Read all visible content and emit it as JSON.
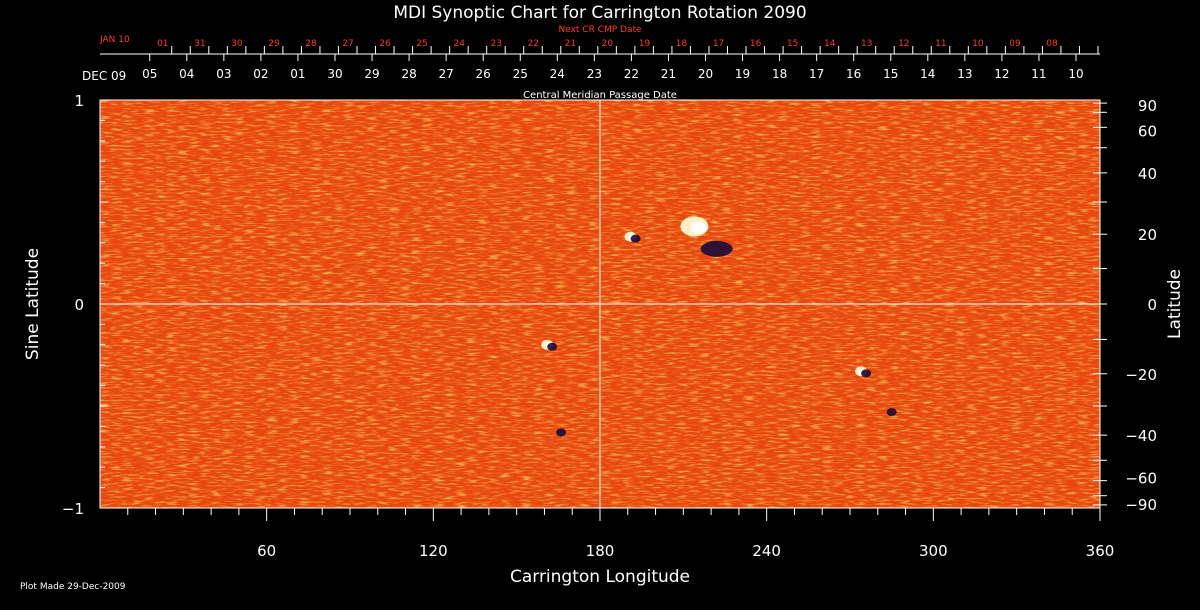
{
  "chart_data": {
    "type": "heatmap",
    "title": "MDI Synoptic Chart for Carrington Rotation 2090",
    "xlabel": "Carrington Longitude",
    "ylabel_left": "Sine Latitude",
    "ylabel_right": "Latitude",
    "xlim": [
      0,
      360
    ],
    "ylim": [
      -1,
      1
    ],
    "x_ticks": [
      60,
      120,
      180,
      240,
      300,
      360
    ],
    "left_ticks": [
      {
        "v": 1,
        "label": "1"
      },
      {
        "v": 0,
        "label": "0"
      },
      {
        "v": -1,
        "label": "−1"
      }
    ],
    "right_ticks": [
      {
        "deg": 90,
        "label": "90"
      },
      {
        "deg": 60,
        "label": "60"
      },
      {
        "deg": 40,
        "label": "40"
      },
      {
        "deg": 20,
        "label": "20"
      },
      {
        "deg": 0,
        "label": "0"
      },
      {
        "deg": -20,
        "label": "−20"
      },
      {
        "deg": -40,
        "label": "−40"
      },
      {
        "deg": -60,
        "label": "−60"
      },
      {
        "deg": -90,
        "label": "−90"
      }
    ],
    "cmp_axis_label": "Central Meridian Passage Date",
    "cmp_start_label": "DEC 09",
    "cmp_dates": [
      "05",
      "04",
      "03",
      "02",
      "01",
      "30",
      "29",
      "28",
      "27",
      "26",
      "25",
      "24",
      "23",
      "22",
      "21",
      "20",
      "19",
      "18",
      "17",
      "16",
      "15",
      "14",
      "13",
      "12",
      "11",
      "10"
    ],
    "next_cr_label": "Next CR CMP Date",
    "next_cr_start_label": "JAN 10",
    "next_cr_dates": [
      "01",
      "31",
      "30",
      "29",
      "28",
      "27",
      "26",
      "25",
      "24",
      "23",
      "22",
      "21",
      "20",
      "19",
      "18",
      "17",
      "16",
      "15",
      "14",
      "13",
      "12",
      "11",
      "10",
      "09",
      "08"
    ],
    "footer": "Plot Made 29-Dec-2009",
    "background_color": "#e8480f",
    "grid_lines": {
      "longitude": 180,
      "sine_latitude": 0
    },
    "features": [
      {
        "lon": 214,
        "sinlat": 0.38,
        "polarity": "positive",
        "size": "large"
      },
      {
        "lon": 222,
        "sinlat": 0.28,
        "polarity": "negative",
        "size": "large"
      },
      {
        "lon": 191,
        "sinlat": 0.33,
        "polarity": "mixed",
        "size": "small"
      },
      {
        "lon": 161,
        "sinlat": -0.2,
        "polarity": "mixed",
        "size": "small"
      },
      {
        "lon": 274,
        "sinlat": -0.33,
        "polarity": "mixed",
        "size": "small"
      },
      {
        "lon": 166,
        "sinlat": -0.62,
        "polarity": "negative",
        "size": "small"
      },
      {
        "lon": 285,
        "sinlat": -0.52,
        "polarity": "negative",
        "size": "small"
      }
    ]
  }
}
